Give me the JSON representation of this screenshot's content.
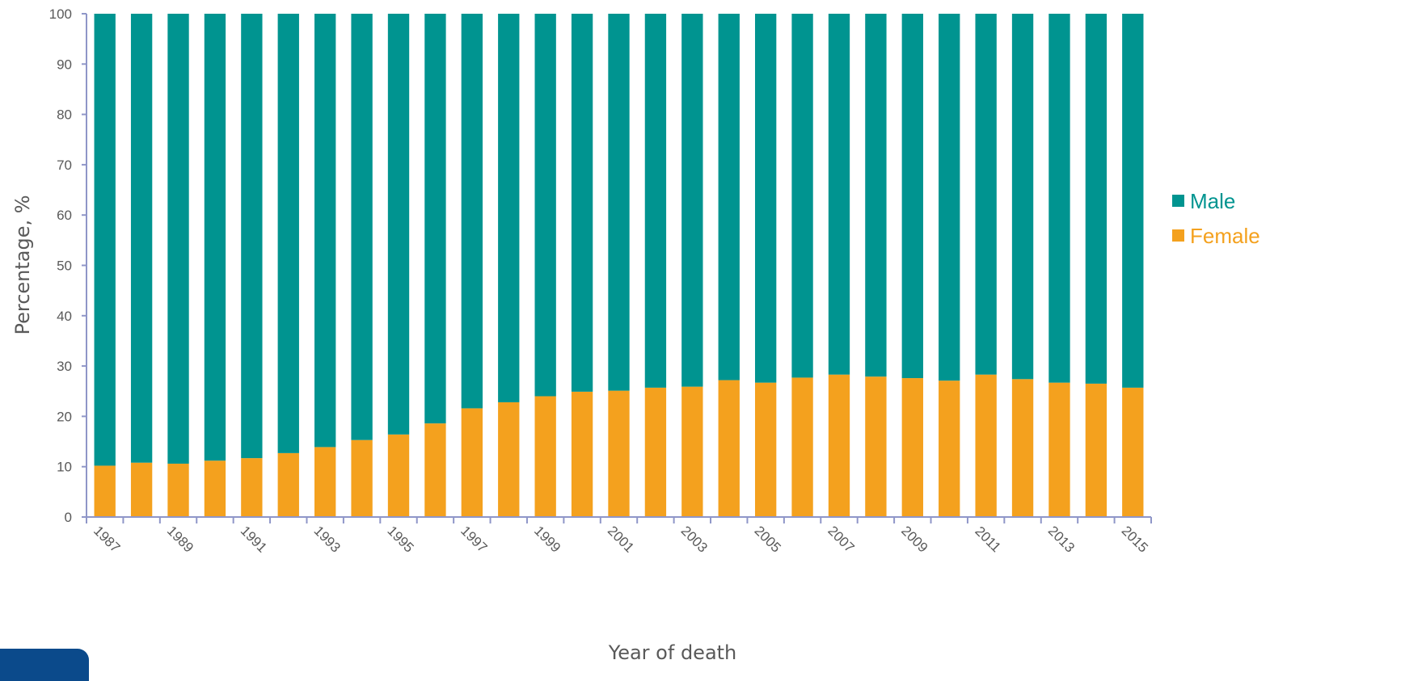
{
  "chart_data": {
    "type": "bar",
    "stacked": true,
    "xlabel": "Year of death",
    "ylabel": "Percentage, %",
    "ylim": [
      0,
      100
    ],
    "yticks": [
      0,
      10,
      20,
      30,
      40,
      50,
      60,
      70,
      80,
      90,
      100
    ],
    "grid": false,
    "legend_position": "right",
    "categories": [
      "1987",
      "1988",
      "1989",
      "1990",
      "1991",
      "1992",
      "1993",
      "1994",
      "1995",
      "1996",
      "1997",
      "1998",
      "1999",
      "2000",
      "2001",
      "2002",
      "2003",
      "2004",
      "2005",
      "2006",
      "2007",
      "2008",
      "2009",
      "2010",
      "2011",
      "2012",
      "2013",
      "2014",
      "2015"
    ],
    "tick_labels_shown": [
      "1987",
      "1989",
      "1991",
      "1993",
      "1995",
      "1997",
      "1999",
      "2001",
      "2003",
      "2005",
      "2007",
      "2009",
      "2011",
      "2013",
      "2015"
    ],
    "series": [
      {
        "name": "Female",
        "color": "#f4a11e",
        "values": [
          10.2,
          10.8,
          10.6,
          11.2,
          11.7,
          12.7,
          13.9,
          15.3,
          16.4,
          18.6,
          21.6,
          22.8,
          24.0,
          24.9,
          25.1,
          25.7,
          25.9,
          27.2,
          26.7,
          27.7,
          28.3,
          27.9,
          27.6,
          27.1,
          28.3,
          27.4,
          26.7,
          26.5,
          25.7
        ]
      },
      {
        "name": "Male",
        "color": "#009490",
        "values": [
          89.8,
          89.2,
          89.4,
          88.8,
          88.3,
          87.3,
          86.1,
          84.7,
          83.6,
          81.4,
          78.4,
          77.2,
          76.0,
          75.1,
          74.9,
          74.3,
          74.1,
          72.8,
          73.3,
          72.3,
          71.7,
          72.1,
          72.4,
          72.9,
          71.7,
          72.6,
          73.3,
          73.5,
          74.3
        ]
      }
    ],
    "legend_order": [
      "Male",
      "Female"
    ],
    "axis_color": "#8f96c8"
  }
}
